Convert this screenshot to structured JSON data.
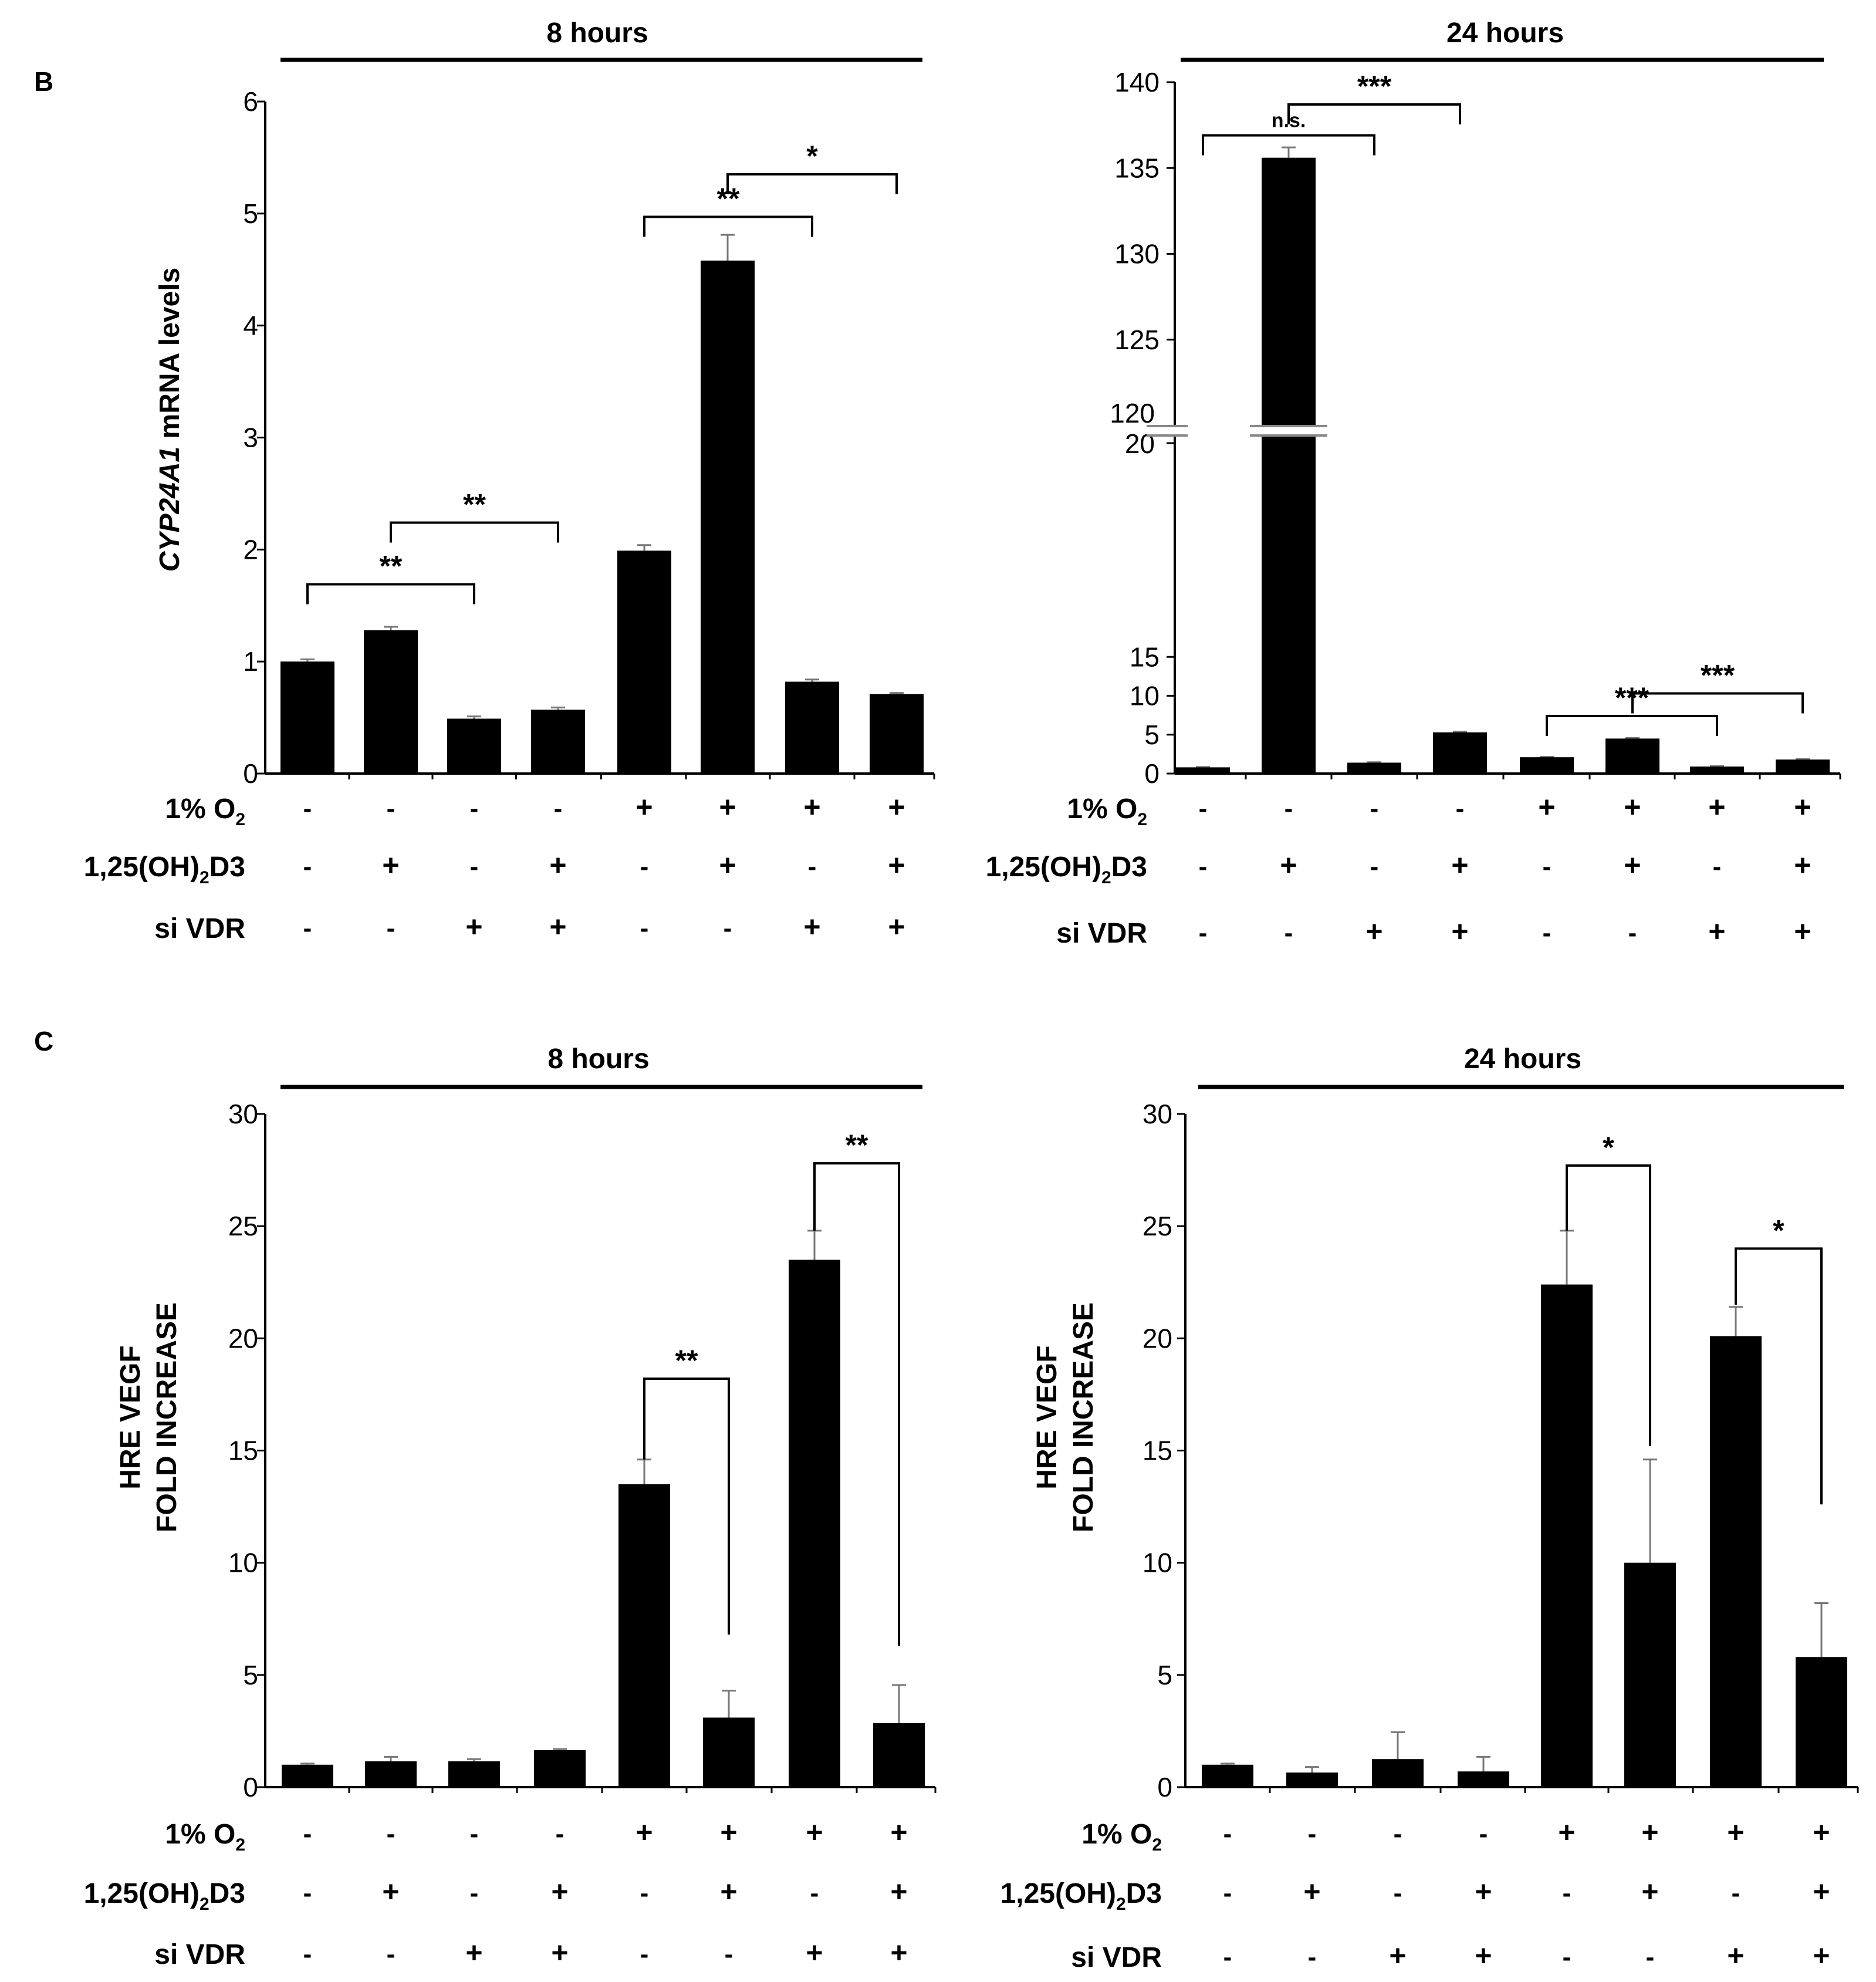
{
  "panel_letters": [
    "B",
    "C"
  ],
  "panels": {
    "B1": {
      "time_label": "8 hours"
    },
    "B2": {
      "time_label": "24 hours"
    },
    "C1": {
      "time_label": "8 hours"
    },
    "C2": {
      "time_label": "24 hours"
    }
  },
  "condition_rows": [
    {
      "label": "1% O",
      "sub": "2",
      "suffix": "",
      "values": [
        "-",
        "-",
        "-",
        "-",
        "+",
        "+",
        "+",
        "+"
      ]
    },
    {
      "label": "1,25(OH)",
      "sub": "2",
      "suffix": "D3",
      "values": [
        "-",
        "+",
        "-",
        "+",
        "-",
        "+",
        "-",
        "+"
      ]
    },
    {
      "label": "si VDR",
      "sub": "",
      "suffix": "",
      "values": [
        "-",
        "-",
        "+",
        "+",
        "-",
        "-",
        "+",
        "+"
      ]
    }
  ],
  "chart_data": [
    {
      "id": "B1",
      "type": "bar",
      "title": "8 hours",
      "ylabel_italic": "CYP24A1",
      "ylabel_rest": " mRNA levels",
      "ylim": [
        0,
        6
      ],
      "yticks": [
        0,
        1,
        2,
        3,
        4,
        5,
        6
      ],
      "values": [
        1.0,
        1.28,
        0.49,
        0.57,
        1.99,
        4.58,
        0.82,
        0.71
      ],
      "errors": [
        0.02,
        0.03,
        0.02,
        0.02,
        0.05,
        0.23,
        0.02,
        0.01
      ],
      "significance": [
        {
          "from": 0,
          "to": 2,
          "label": "**",
          "y": 1.69
        },
        {
          "from": 1,
          "to": 3,
          "label": "**",
          "y": 2.24
        },
        {
          "from": 4,
          "to": 6,
          "label": "**",
          "y": 4.97
        },
        {
          "from": 5,
          "to": 7,
          "label": "*",
          "y": 5.35
        }
      ]
    },
    {
      "id": "B2",
      "type": "bar",
      "title": "24 hours",
      "axis_break": {
        "lower": [
          0,
          20
        ],
        "upper": [
          120,
          140
        ]
      },
      "yticks_lower": [
        0,
        5,
        10,
        15,
        20
      ],
      "yticks_upper": [
        120,
        125,
        130,
        135,
        140
      ],
      "values": [
        0.8,
        135.6,
        1.4,
        5.3,
        2.1,
        4.5,
        0.9,
        1.8
      ],
      "errors": [
        0.05,
        0.6,
        0.05,
        0.1,
        0.05,
        0.08,
        0.05,
        0.05
      ],
      "significance": [
        {
          "from": 0,
          "to": 2,
          "label": "n.s.",
          "y": 136.9,
          "small": true
        },
        {
          "from": 1,
          "to": 3,
          "label": "***",
          "y": 138.7
        },
        {
          "from": 4,
          "to": 6,
          "label": "***",
          "y": 7.4
        },
        {
          "from": 5,
          "to": 7,
          "label": "***",
          "y": 10.3
        }
      ]
    },
    {
      "id": "C1",
      "type": "bar",
      "title": "8 hours",
      "ylabel": [
        "HRE VEGF",
        "FOLD INCREASE"
      ],
      "ylim": [
        0,
        30
      ],
      "yticks": [
        0,
        5,
        10,
        15,
        20,
        25,
        30
      ],
      "values": [
        1.0,
        1.15,
        1.15,
        1.65,
        13.5,
        3.1,
        23.5,
        2.85
      ],
      "errors": [
        0.05,
        0.2,
        0.1,
        0.05,
        1.1,
        1.2,
        1.3,
        1.7
      ],
      "significance": [
        {
          "from": 4,
          "to": 5,
          "label": "**",
          "y": 18.2,
          "left": 14.6,
          "right": 6.8
        },
        {
          "from": 6,
          "to": 7,
          "label": "**",
          "y": 27.8,
          "left": 24.8,
          "right": 6.3
        }
      ]
    },
    {
      "id": "C2",
      "type": "bar",
      "title": "24 hours",
      "ylabel": [
        "HRE VEGF",
        "FOLD INCREASE"
      ],
      "ylim": [
        0,
        30
      ],
      "yticks": [
        0,
        5,
        10,
        15,
        20,
        25,
        30
      ],
      "values": [
        1.0,
        0.65,
        1.25,
        0.7,
        22.4,
        10.0,
        20.1,
        5.8
      ],
      "errors": [
        0.05,
        0.25,
        1.2,
        0.65,
        2.4,
        4.6,
        1.3,
        2.4
      ],
      "significance": [
        {
          "from": 4,
          "to": 5,
          "label": "*",
          "y": 27.7,
          "left": 24.8,
          "right": 15.2
        },
        {
          "from": 6,
          "to": 7,
          "label": "*",
          "y": 24.0,
          "left": 21.5,
          "right": 12.6
        }
      ]
    }
  ]
}
